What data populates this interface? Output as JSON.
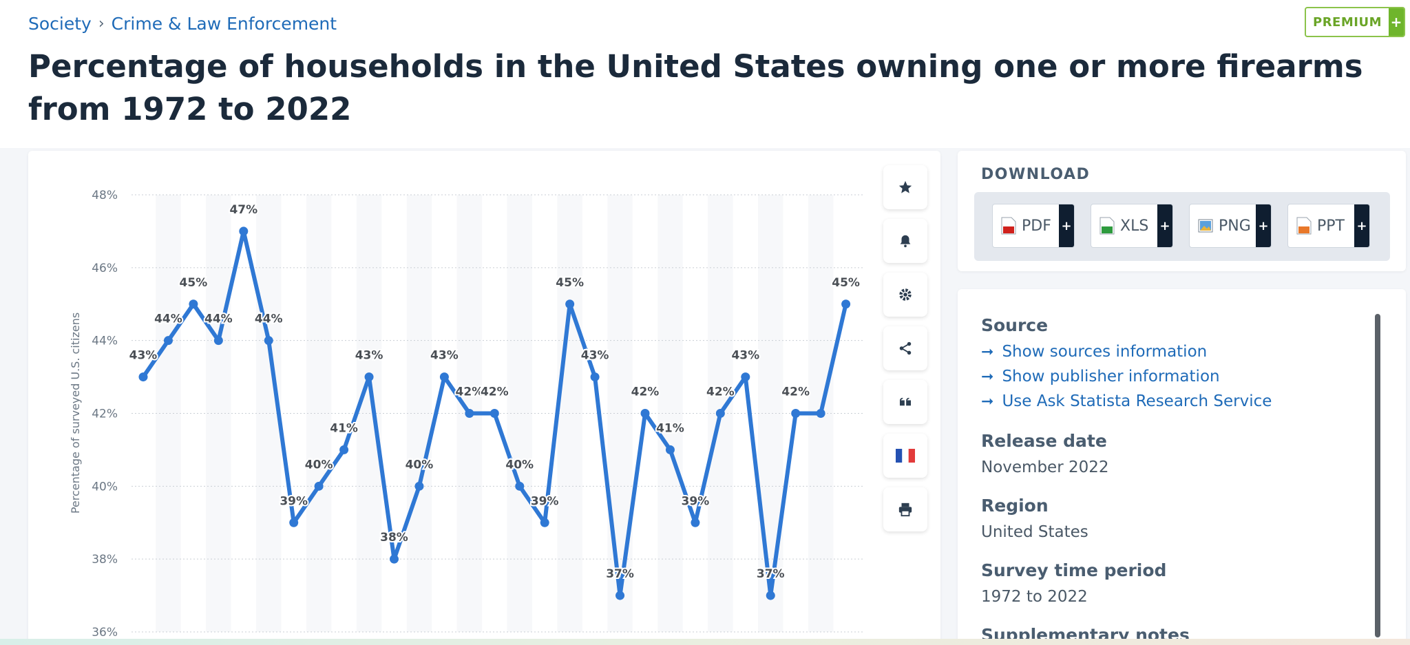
{
  "breadcrumb": {
    "items": [
      "Society",
      "Crime & Law Enforcement"
    ],
    "separator": "›"
  },
  "premium": {
    "label": "PREMIUM",
    "plus": "+"
  },
  "title": "Percentage of households in the United States owning one or more firearms from 1972 to 2022",
  "colors": {
    "line": "#2f78d4",
    "link": "#1f6bb8",
    "premium": "#6aa527",
    "title": "#1b2a3b"
  },
  "toolbar": {
    "icons": [
      "star-icon",
      "bell-icon",
      "gear-icon",
      "share-icon",
      "quote-icon",
      "french-flag-icon",
      "print-icon"
    ]
  },
  "download": {
    "title": "DOWNLOAD",
    "buttons": [
      {
        "label": "PDF",
        "plus": "+"
      },
      {
        "label": "XLS",
        "plus": "+"
      },
      {
        "label": "PNG",
        "plus": "+"
      },
      {
        "label": "PPT",
        "plus": "+"
      }
    ]
  },
  "info": {
    "source_heading": "Source",
    "links": [
      "Show sources information",
      "Show publisher information",
      "Use Ask Statista Research Service"
    ],
    "release_heading": "Release date",
    "release_value": "November 2022",
    "region_heading": "Region",
    "region_value": "United States",
    "period_heading": "Survey time period",
    "period_value": "1972 to 2022",
    "notes_heading": "Supplementary notes"
  },
  "chart_data": {
    "type": "line",
    "ylabel": "Percentage of surveyed U.S. citizens",
    "ylim": [
      36,
      48
    ],
    "y_ticks": [
      "36%",
      "38%",
      "40%",
      "42%",
      "44%",
      "46%",
      "48%"
    ],
    "grid": true,
    "series": [
      {
        "values": [
          43,
          44,
          45,
          44,
          47,
          44,
          39,
          40,
          41,
          43,
          38,
          40,
          43,
          42,
          42,
          40,
          39,
          45,
          43,
          37,
          42,
          41,
          39,
          42,
          43,
          37,
          42,
          42,
          45
        ],
        "labels": [
          "43%",
          "44%",
          "45%",
          "44%",
          "47%",
          "44%",
          "39%",
          "40%",
          "41%",
          "43%",
          "38%",
          "40%",
          "43%",
          "42%",
          "42%",
          "40%",
          "39%",
          "45%",
          "43%",
          "37%",
          "42%",
          "41%",
          "39%",
          "42%",
          "43%",
          "37%",
          "42%",
          "",
          "45%"
        ]
      }
    ]
  }
}
